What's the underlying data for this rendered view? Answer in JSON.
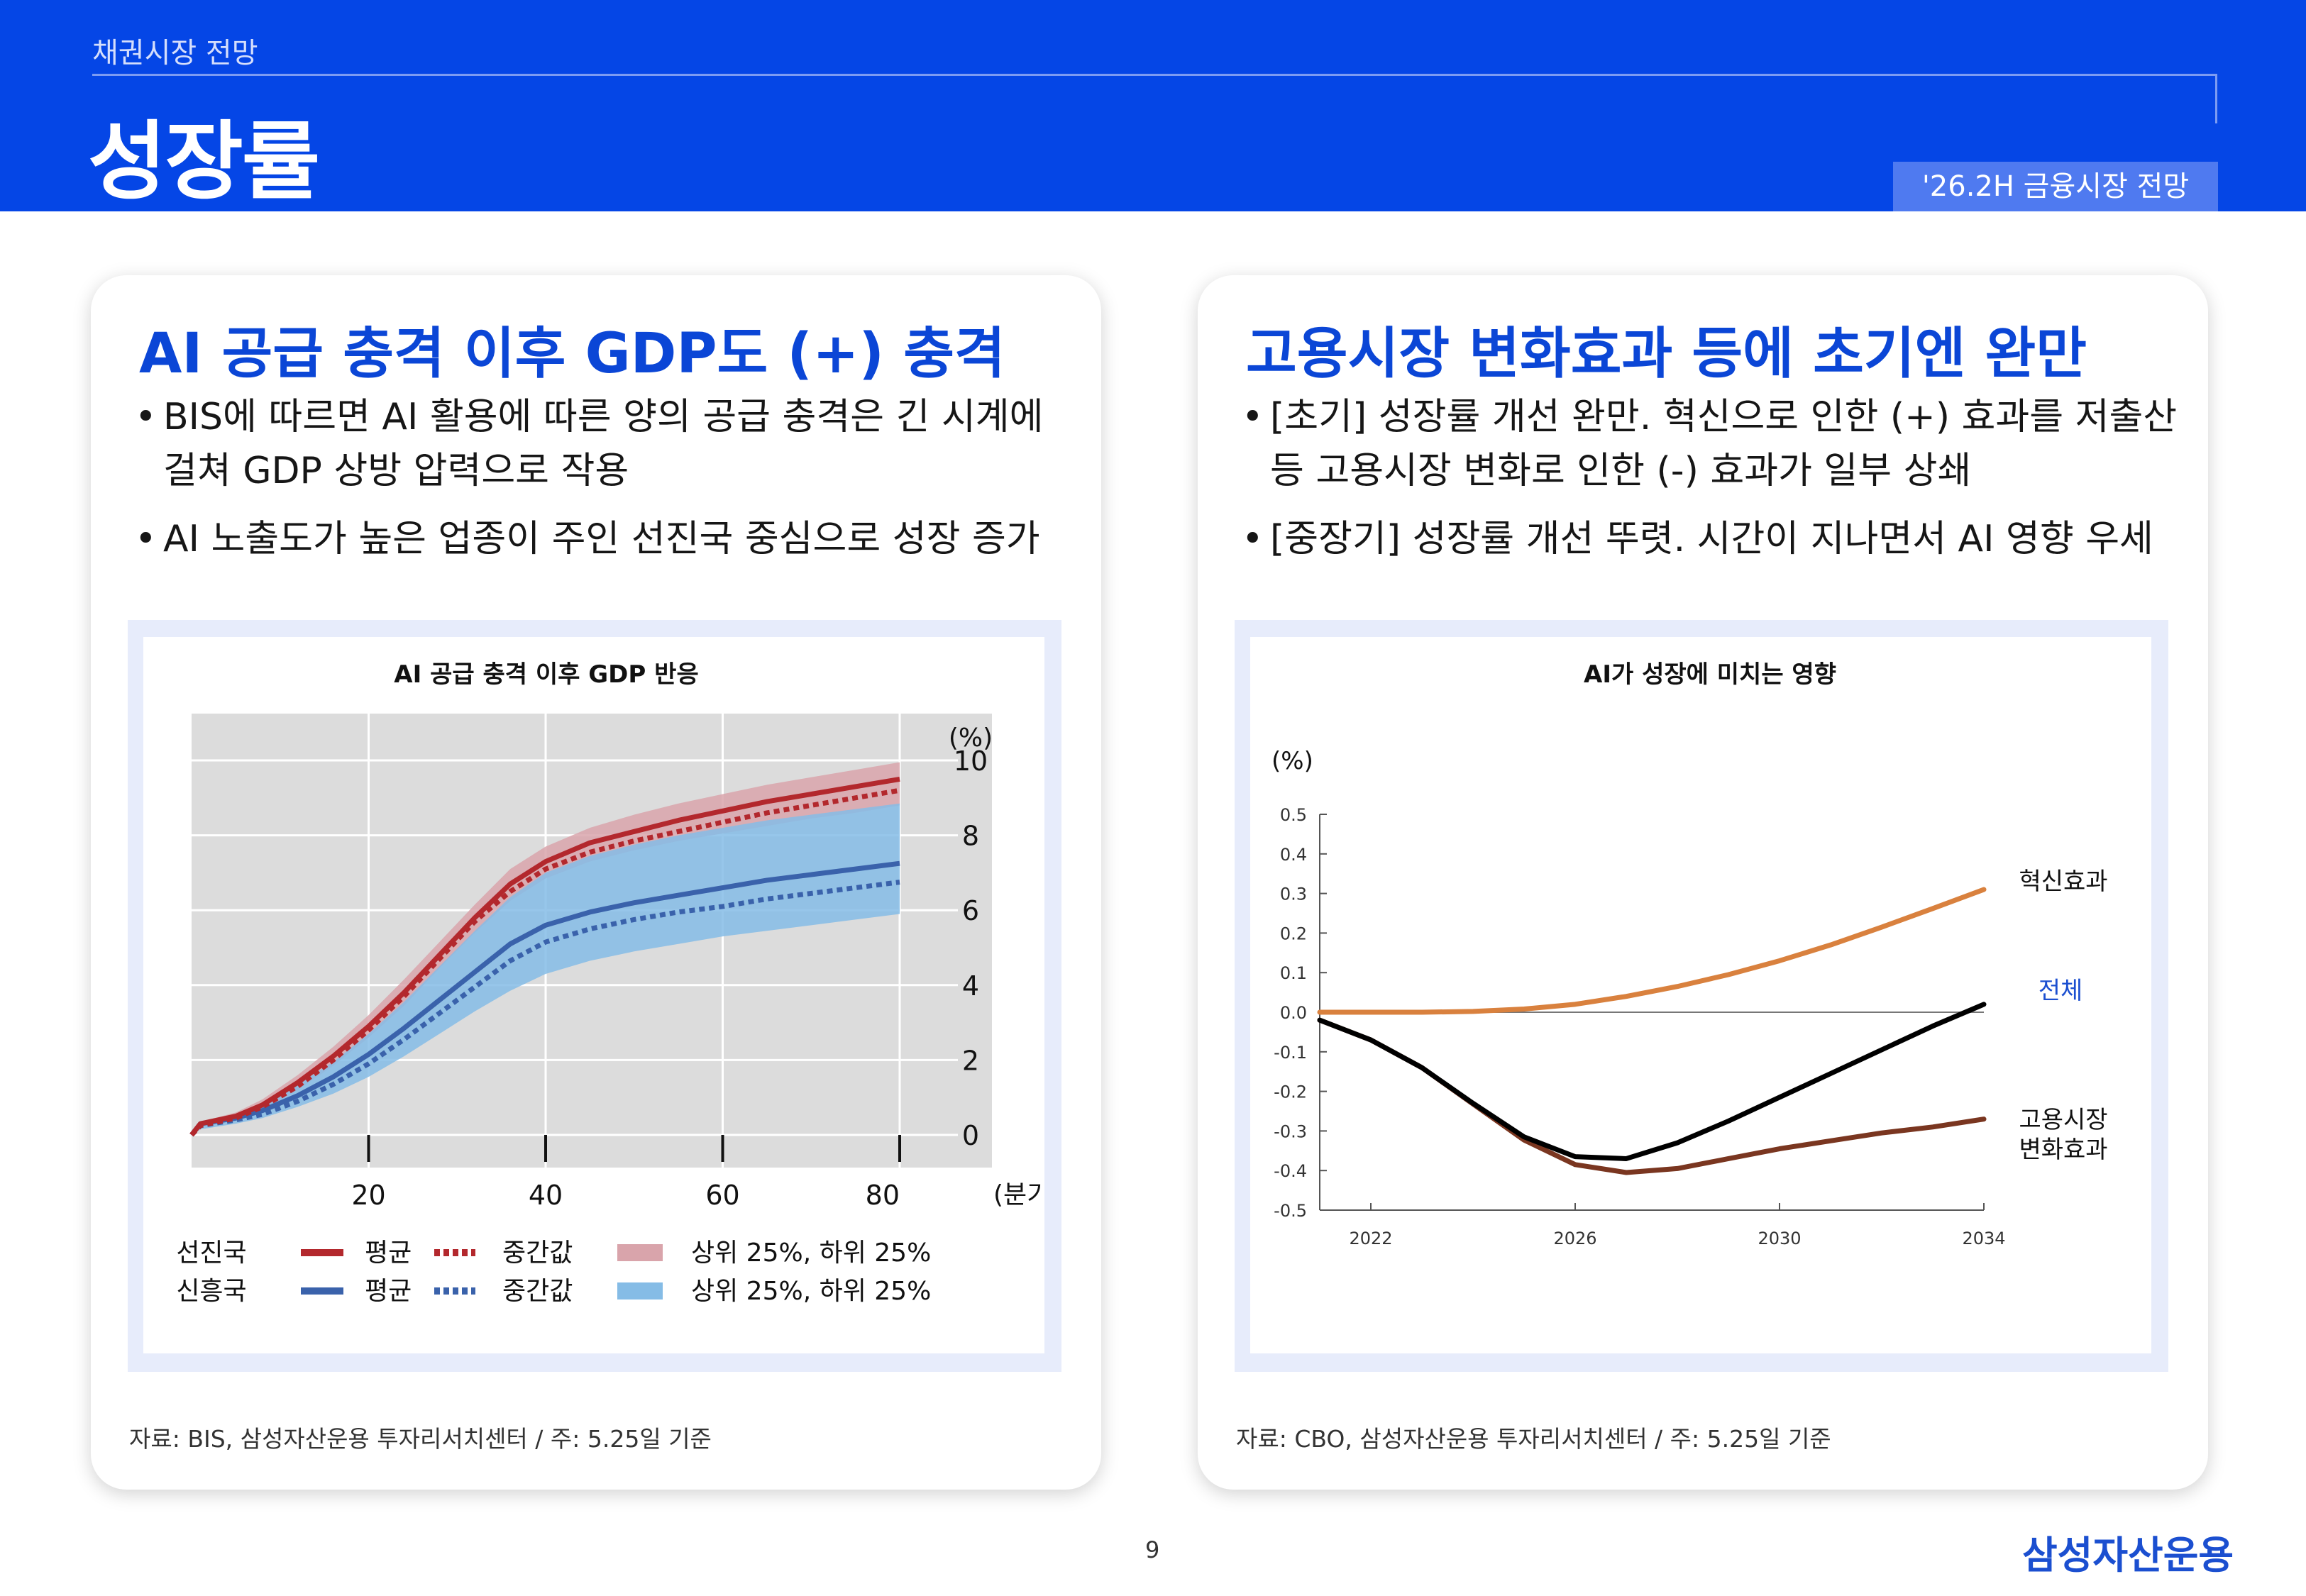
{
  "header": {
    "section": "채권시장 전망",
    "title": "성장률",
    "tag": "'26.2H 금융시장 전망"
  },
  "left_panel": {
    "title": "AI 공급 충격 이후 GDP도 (+) 충격",
    "bullets": [
      "BIS에 따르면 AI 활용에 따른 양의 공급 충격은 긴 시계에 걸쳐 GDP 상방 압력으로 작용",
      "AI 노출도가 높은 업종이 주인 선진국 중심으로 성장 증가"
    ],
    "source": "자료: BIS, 삼성자산운용 투자리서치센터 / 주: 5.25일 기준"
  },
  "right_panel": {
    "title": "고용시장 변화효과 등에 초기엔 완만",
    "bullets": [
      "[초기] 성장률 개선 완만. 혁신으로 인한 (+) 효과를 저출산 등 고용시장 변화로 인한 (-) 효과가 일부 상쇄",
      "[중장기] 성장률 개선 뚜렷. 시간이 지나면서 AI 영향 우세"
    ],
    "source": "자료: CBO, 삼성자산운용 투자리서치센터 / 주: 5.25일 기준"
  },
  "footer": {
    "page": "9",
    "logo": "삼성자산운용"
  },
  "chart_data": [
    {
      "type": "line",
      "title": "AI 공급 충격 이후 GDP 반응",
      "y_unit": "(%)",
      "x_unit": "(분기)",
      "x_ticks": [
        20,
        40,
        60,
        80
      ],
      "y_ticks": [
        0,
        2,
        4,
        6,
        8,
        10
      ],
      "xlim": [
        0,
        80
      ],
      "ylim": [
        0,
        11.5
      ],
      "grid": true,
      "legend_position": "bottom",
      "colors": {
        "adv": "#b3282d",
        "adv_band": "#d9a4ab",
        "em": "#3a62ab",
        "em_band": "#85bce6",
        "plot_bg": "#dcdcdc"
      },
      "x": [
        0,
        1,
        5,
        8,
        12,
        16,
        20,
        24,
        28,
        32,
        36,
        40,
        45,
        50,
        55,
        60,
        65,
        70,
        75,
        80
      ],
      "series": [
        {
          "group": "선진국",
          "name": "평균",
          "values": [
            0.0,
            0.3,
            0.5,
            0.8,
            1.4,
            2.1,
            2.9,
            3.8,
            4.8,
            5.8,
            6.7,
            7.3,
            7.8,
            8.1,
            8.4,
            8.65,
            8.9,
            9.1,
            9.3,
            9.5
          ]
        },
        {
          "group": "선진국",
          "name": "중간값",
          "values": [
            0.0,
            0.25,
            0.45,
            0.75,
            1.3,
            2.0,
            2.8,
            3.7,
            4.7,
            5.7,
            6.5,
            7.1,
            7.55,
            7.85,
            8.1,
            8.35,
            8.6,
            8.8,
            9.0,
            9.2
          ]
        },
        {
          "group": "선진국",
          "name": "상위 25%",
          "values": [
            0.0,
            0.35,
            0.6,
            0.95,
            1.6,
            2.35,
            3.2,
            4.15,
            5.15,
            6.15,
            7.1,
            7.7,
            8.2,
            8.55,
            8.85,
            9.1,
            9.35,
            9.55,
            9.75,
            9.95
          ]
        },
        {
          "group": "선진국",
          "name": "하위 25%",
          "values": [
            0.0,
            0.2,
            0.4,
            0.65,
            1.2,
            1.85,
            2.6,
            3.45,
            4.45,
            5.4,
            6.25,
            6.85,
            7.3,
            7.6,
            7.85,
            8.05,
            8.25,
            8.45,
            8.6,
            8.8
          ]
        },
        {
          "group": "신흥국",
          "name": "평균",
          "values": [
            0.0,
            0.3,
            0.45,
            0.65,
            1.05,
            1.55,
            2.15,
            2.85,
            3.6,
            4.35,
            5.1,
            5.6,
            5.95,
            6.2,
            6.4,
            6.6,
            6.8,
            6.95,
            7.1,
            7.25
          ]
        },
        {
          "group": "신흥국",
          "name": "중간값",
          "values": [
            0.0,
            0.25,
            0.4,
            0.55,
            0.9,
            1.35,
            1.9,
            2.55,
            3.25,
            3.95,
            4.65,
            5.15,
            5.5,
            5.75,
            5.95,
            6.1,
            6.3,
            6.45,
            6.6,
            6.75
          ]
        },
        {
          "group": "신흥국",
          "name": "상위 25%",
          "values": [
            0.0,
            0.35,
            0.55,
            0.85,
            1.35,
            1.95,
            2.7,
            3.55,
            4.5,
            5.45,
            6.35,
            7.0,
            7.45,
            7.75,
            8.0,
            8.2,
            8.4,
            8.55,
            8.7,
            8.85
          ]
        },
        {
          "group": "신흥국",
          "name": "하위 25%",
          "values": [
            0.0,
            0.15,
            0.3,
            0.45,
            0.75,
            1.1,
            1.55,
            2.1,
            2.7,
            3.3,
            3.85,
            4.3,
            4.65,
            4.9,
            5.1,
            5.3,
            5.45,
            5.6,
            5.75,
            5.9
          ]
        }
      ],
      "legend": [
        {
          "group": "선진국",
          "items": [
            "평균",
            "중간값",
            "상위 25%, 하위 25%"
          ]
        },
        {
          "group": "신흥국",
          "items": [
            "평균",
            "중간값",
            "상위 25%, 하위 25%"
          ]
        }
      ]
    },
    {
      "type": "line",
      "title": "AI가 성장에 미치는 영향",
      "y_unit": "(%)",
      "x_ticks": [
        2022,
        2026,
        2030,
        2034
      ],
      "y_ticks": [
        -0.5,
        -0.4,
        -0.3,
        -0.2,
        -0.1,
        0.0,
        0.1,
        0.2,
        0.3,
        0.4,
        0.5
      ],
      "y_tick_labels": [
        "-0.5",
        "-0.4",
        "-0.3",
        "-0.2",
        "-0.1",
        "0.0",
        "0.1",
        "0.2",
        "0.3",
        "0.4",
        "0.5"
      ],
      "xlim": [
        2021,
        2034
      ],
      "ylim": [
        -0.5,
        0.5
      ],
      "grid": false,
      "legend_position": "right",
      "x": [
        2021,
        2022,
        2023,
        2024,
        2025,
        2026,
        2027,
        2028,
        2029,
        2030,
        2031,
        2032,
        2033,
        2034
      ],
      "series": [
        {
          "name": "혁신효과",
          "color": "#d9813e",
          "values": [
            0.0,
            0.0,
            0.0,
            0.002,
            0.008,
            0.02,
            0.04,
            0.065,
            0.095,
            0.13,
            0.17,
            0.215,
            0.262,
            0.31
          ]
        },
        {
          "name": "전체",
          "color": "#000000",
          "values": [
            -0.02,
            -0.07,
            -0.14,
            -0.23,
            -0.315,
            -0.365,
            -0.37,
            -0.33,
            -0.275,
            -0.215,
            -0.155,
            -0.095,
            -0.035,
            0.02
          ]
        },
        {
          "name": "고용시장 변화효과",
          "color": "#7a3620",
          "values": [
            -0.02,
            -0.07,
            -0.14,
            -0.232,
            -0.323,
            -0.385,
            -0.405,
            -0.395,
            -0.37,
            -0.345,
            -0.325,
            -0.305,
            -0.29,
            -0.27
          ]
        }
      ],
      "labels": [
        "혁신효과",
        "전체",
        "고용시장",
        "변화효과"
      ]
    }
  ]
}
